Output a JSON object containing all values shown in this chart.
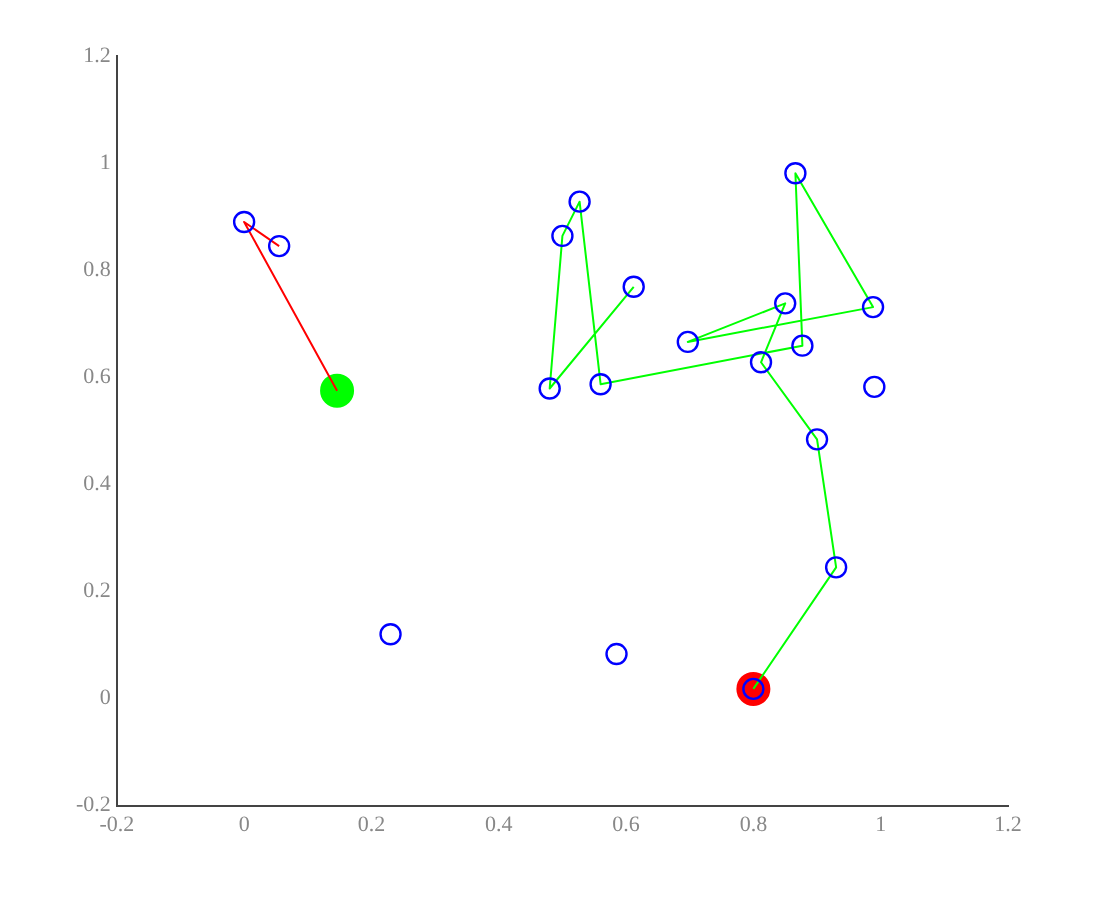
{
  "chart_data": {
    "type": "scatter",
    "xlim": [
      -0.2,
      1.2
    ],
    "ylim": [
      -0.2,
      1.2
    ],
    "xticks": [
      -0.2,
      0,
      0.2,
      0.4,
      0.6,
      0.8,
      1,
      1.2
    ],
    "yticks": [
      -0.2,
      0,
      0.2,
      0.4,
      0.6,
      0.8,
      1,
      1.2
    ],
    "grid": false,
    "legend": false,
    "series": [
      {
        "color": "#0000ff",
        "marker": "circle",
        "x": [
          0.0,
          0.055,
          0.23,
          0.585,
          0.8,
          0.5,
          0.527,
          0.612,
          0.48,
          0.56,
          0.697,
          0.85,
          0.866,
          0.988,
          0.877,
          0.812,
          0.99,
          0.9,
          0.93
        ],
        "values": [
          0.89,
          0.845,
          0.12,
          0.083,
          0.018,
          0.864,
          0.928,
          0.769,
          0.579,
          0.587,
          0.666,
          0.738,
          0.981,
          0.731,
          0.659,
          0.628,
          0.582,
          0.484,
          0.245
        ]
      },
      {
        "type": "line",
        "color": "#ff0000",
        "marker": "none",
        "x": [
          0.146,
          0.0,
          0.055
        ],
        "values": [
          0.575,
          0.89,
          0.845
        ]
      },
      {
        "type": "line",
        "color": "#00ff00",
        "marker": "none",
        "x": [
          0.8,
          0.93,
          0.9,
          0.812,
          0.85,
          0.697,
          0.988,
          0.866,
          0.877,
          0.56,
          0.527,
          0.5,
          0.48,
          0.612
        ],
        "values": [
          0.018,
          0.245,
          0.484,
          0.628,
          0.738,
          0.666,
          0.731,
          0.981,
          0.659,
          0.587,
          0.928,
          0.864,
          0.579,
          0.769
        ]
      },
      {
        "color": "#00ff00",
        "marker": "circle",
        "x": [
          0.146
        ],
        "values": [
          0.575
        ]
      },
      {
        "color": "#ff0000",
        "marker": "circle",
        "x": [
          0.8
        ],
        "values": [
          0.018
        ]
      }
    ]
  }
}
